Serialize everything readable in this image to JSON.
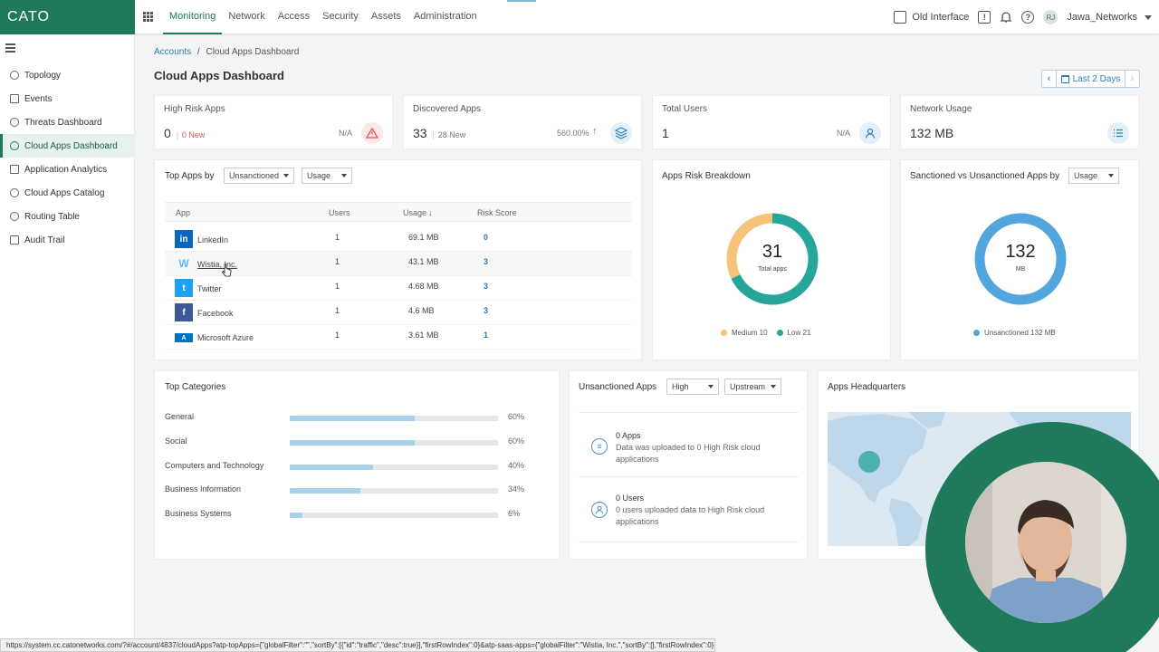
{
  "topbar": {
    "logo": "CATO",
    "nav": [
      "Monitoring",
      "Network",
      "Access",
      "Security",
      "Assets",
      "Administration"
    ],
    "old_interface": "Old Interface",
    "avatar_initials": "RJ",
    "account": "Jawa_Networks"
  },
  "sidebar": {
    "items": [
      {
        "label": "Topology",
        "icon": "topology-icon"
      },
      {
        "label": "Events",
        "icon": "events-icon"
      },
      {
        "label": "Threats Dashboard",
        "icon": "shield-icon"
      },
      {
        "label": "Cloud Apps Dashboard",
        "icon": "cloud-icon"
      },
      {
        "label": "Application Analytics",
        "icon": "analytics-icon"
      },
      {
        "label": "Cloud Apps Catalog",
        "icon": "catalog-icon"
      },
      {
        "label": "Routing Table",
        "icon": "routing-icon"
      },
      {
        "label": "Audit Trail",
        "icon": "audit-icon"
      }
    ],
    "active_index": 3
  },
  "breadcrumb": {
    "root": "Accounts",
    "sep": "/",
    "current": "Cloud Apps Dashboard"
  },
  "page_title": "Cloud Apps Dashboard",
  "date_range": "Last 2 Days",
  "kpis": {
    "high_risk": {
      "label": "High Risk Apps",
      "value": "0",
      "sep": "|",
      "sub": "0 New",
      "right": "N/A"
    },
    "discovered": {
      "label": "Discovered Apps",
      "value": "33",
      "sep": "|",
      "sub": "28 New",
      "right": "560.00%"
    },
    "users": {
      "label": "Total Users",
      "value": "1",
      "right": "N/A"
    },
    "network": {
      "label": "Network Usage",
      "value": "132 MB"
    }
  },
  "top_apps": {
    "label": "Top Apps by",
    "filter1": "Unsanctioned",
    "filter2": "Usage",
    "headers": {
      "app": "App",
      "users": "Users",
      "usage": "Usage",
      "risk": "Risk Score"
    },
    "rows": [
      {
        "app": "LinkedIn",
        "users": "1",
        "usage": "69.1 MB",
        "risk": "0",
        "logo": "in",
        "color": "#0a66c2"
      },
      {
        "app": "Wistia, Inc.",
        "users": "1",
        "usage": "43.1 MB",
        "risk": "3",
        "logo": "W",
        "color": "#54bbff"
      },
      {
        "app": "Twitter",
        "users": "1",
        "usage": "4.68 MB",
        "risk": "3",
        "logo": "t",
        "color": "#1da1f2"
      },
      {
        "app": "Facebook",
        "users": "1",
        "usage": "4.6 MB",
        "risk": "3",
        "logo": "f",
        "color": "#3b5998"
      },
      {
        "app": "Microsoft Azure",
        "users": "1",
        "usage": "3.61 MB",
        "risk": "1",
        "logo": "A",
        "color": "#0072c6"
      }
    ]
  },
  "risk_breakdown": {
    "title": "Apps Risk Breakdown",
    "total": "31",
    "total_label": "Total apps",
    "segments": [
      {
        "name": "Medium",
        "value": 10,
        "legend": "Medium 10",
        "color": "#f7c27a"
      },
      {
        "name": "Low",
        "value": 21,
        "legend": "Low 21",
        "color": "#26a69a"
      }
    ]
  },
  "sanctioned": {
    "title": "Sanctioned vs Unsanctioned Apps by",
    "filter": "Usage",
    "total": "132",
    "unit": "MB",
    "segments": [
      {
        "name": "Unsanctioned",
        "value": 132,
        "legend": "Unsanctioned 132 MB",
        "color": "#52a6dd"
      }
    ]
  },
  "top_categories": {
    "title": "Top Categories",
    "rows": [
      {
        "name": "General",
        "pct": 60,
        "label": "60%"
      },
      {
        "name": "Social",
        "pct": 60,
        "label": "60%"
      },
      {
        "name": "Computers and Technology",
        "pct": 40,
        "label": "40%"
      },
      {
        "name": "Business Information",
        "pct": 34,
        "label": "34%"
      },
      {
        "name": "Business Systems",
        "pct": 6,
        "label": "6%"
      }
    ]
  },
  "unsanctioned_apps": {
    "title": "Unsanctioned Apps",
    "filter1": "High",
    "filter2": "Upstream",
    "apps_title": "0 Apps",
    "apps_desc": "Data was uploaded to 0 High Risk cloud applications",
    "users_title": "0 Users",
    "users_desc": "0 users uploaded data to High Risk cloud applications"
  },
  "headquarters": {
    "title": "Apps Headquarters"
  },
  "status_url": "https://system.cc.catonetworks.com/?#/account/4837/cloudApps?atp-topApps={\"globalFilter\":\"\",\"sortBy\":[{\"id\":\"traffic\",\"desc\":true}],\"firstRowIndex\":0}&atp-saas-apps={\"globalFilter\":\"Wistia, Inc.\",\"sortBy\":[],\"firstRowIndex\":0}"
}
